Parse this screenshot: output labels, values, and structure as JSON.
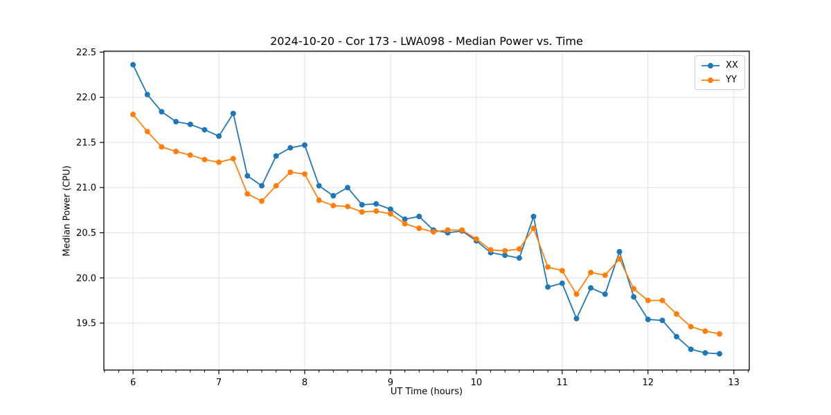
{
  "chart_data": {
    "type": "line",
    "title": "2024-10-20 - Cor 173 - LWA098 - Median Power vs. Time",
    "xlabel": "UT Time (hours)",
    "ylabel": "Median Power (CPU)",
    "xlim": [
      5.66,
      13.18
    ],
    "ylim": [
      18.98,
      22.51
    ],
    "x_ticks": [
      6,
      7,
      8,
      9,
      10,
      11,
      12,
      13
    ],
    "y_ticks": [
      19.5,
      20.0,
      20.5,
      21.0,
      21.5,
      22.0,
      22.5
    ],
    "x_minor_tick_step": 0.166667,
    "grid": true,
    "grid_color": "#e0e0e0",
    "spine_color": "#000000",
    "background_color": "#ffffff",
    "legend_position": "upper right",
    "marker_style": "circle",
    "marker_size": 8,
    "line_width": 1.8,
    "x": [
      6.0,
      6.167,
      6.333,
      6.5,
      6.667,
      6.833,
      7.0,
      7.167,
      7.333,
      7.5,
      7.667,
      7.833,
      8.0,
      8.167,
      8.333,
      8.5,
      8.667,
      8.833,
      9.0,
      9.167,
      9.333,
      9.5,
      9.667,
      9.833,
      10.0,
      10.167,
      10.333,
      10.5,
      10.667,
      10.833,
      11.0,
      11.167,
      11.333,
      11.5,
      11.667,
      11.833,
      12.0,
      12.167,
      12.333,
      12.5,
      12.667,
      12.833
    ],
    "series": [
      {
        "name": "XX",
        "color": "#1f77b4",
        "values": [
          22.36,
          22.03,
          21.84,
          21.73,
          21.7,
          21.64,
          21.57,
          21.82,
          21.13,
          21.02,
          21.35,
          21.44,
          21.47,
          21.02,
          20.91,
          21.0,
          20.81,
          20.82,
          20.76,
          20.65,
          20.68,
          20.53,
          20.5,
          20.52,
          20.41,
          20.28,
          20.25,
          20.22,
          20.68,
          19.9,
          19.94,
          19.55,
          19.89,
          19.82,
          20.29,
          19.79,
          19.54,
          19.53,
          19.35,
          19.21,
          19.17,
          19.16
        ]
      },
      {
        "name": "YY",
        "color": "#ff7f0e",
        "values": [
          21.81,
          21.62,
          21.45,
          21.4,
          21.36,
          21.31,
          21.28,
          21.32,
          20.93,
          20.85,
          21.02,
          21.17,
          21.15,
          20.86,
          20.8,
          20.79,
          20.73,
          20.74,
          20.71,
          20.6,
          20.55,
          20.51,
          20.53,
          20.53,
          20.43,
          20.31,
          20.3,
          20.32,
          20.55,
          20.12,
          20.08,
          19.82,
          20.06,
          20.03,
          20.21,
          19.88,
          19.75,
          19.75,
          19.6,
          19.46,
          19.41,
          19.38
        ]
      }
    ]
  }
}
